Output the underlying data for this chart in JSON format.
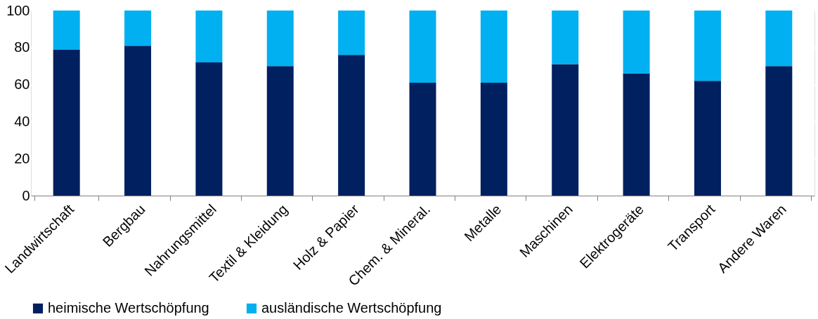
{
  "chart_data": {
    "type": "bar",
    "stacked": true,
    "categories": [
      "Landwirtschaft",
      "Bergbau",
      "Nahrungsmittel",
      "Textil & Kleidung",
      "Holz & Papier",
      "Chem. & Mineral.",
      "Metalle",
      "Maschinen",
      "Elektrogeräte",
      "Transport",
      "Andere Waren"
    ],
    "series": [
      {
        "name": "heimische Wertschöpfung",
        "color": "#002060",
        "values": [
          79,
          81,
          72,
          70,
          76,
          61,
          61,
          71,
          66,
          62,
          70
        ]
      },
      {
        "name": "ausländische Wertschöpfung",
        "color": "#00b0f0",
        "values": [
          21,
          19,
          28,
          30,
          24,
          39,
          39,
          29,
          34,
          38,
          30
        ]
      }
    ],
    "ylim": [
      0,
      100
    ],
    "yticks": [
      0,
      20,
      40,
      60,
      80,
      100
    ],
    "grid": "y",
    "legend": "bottom"
  }
}
